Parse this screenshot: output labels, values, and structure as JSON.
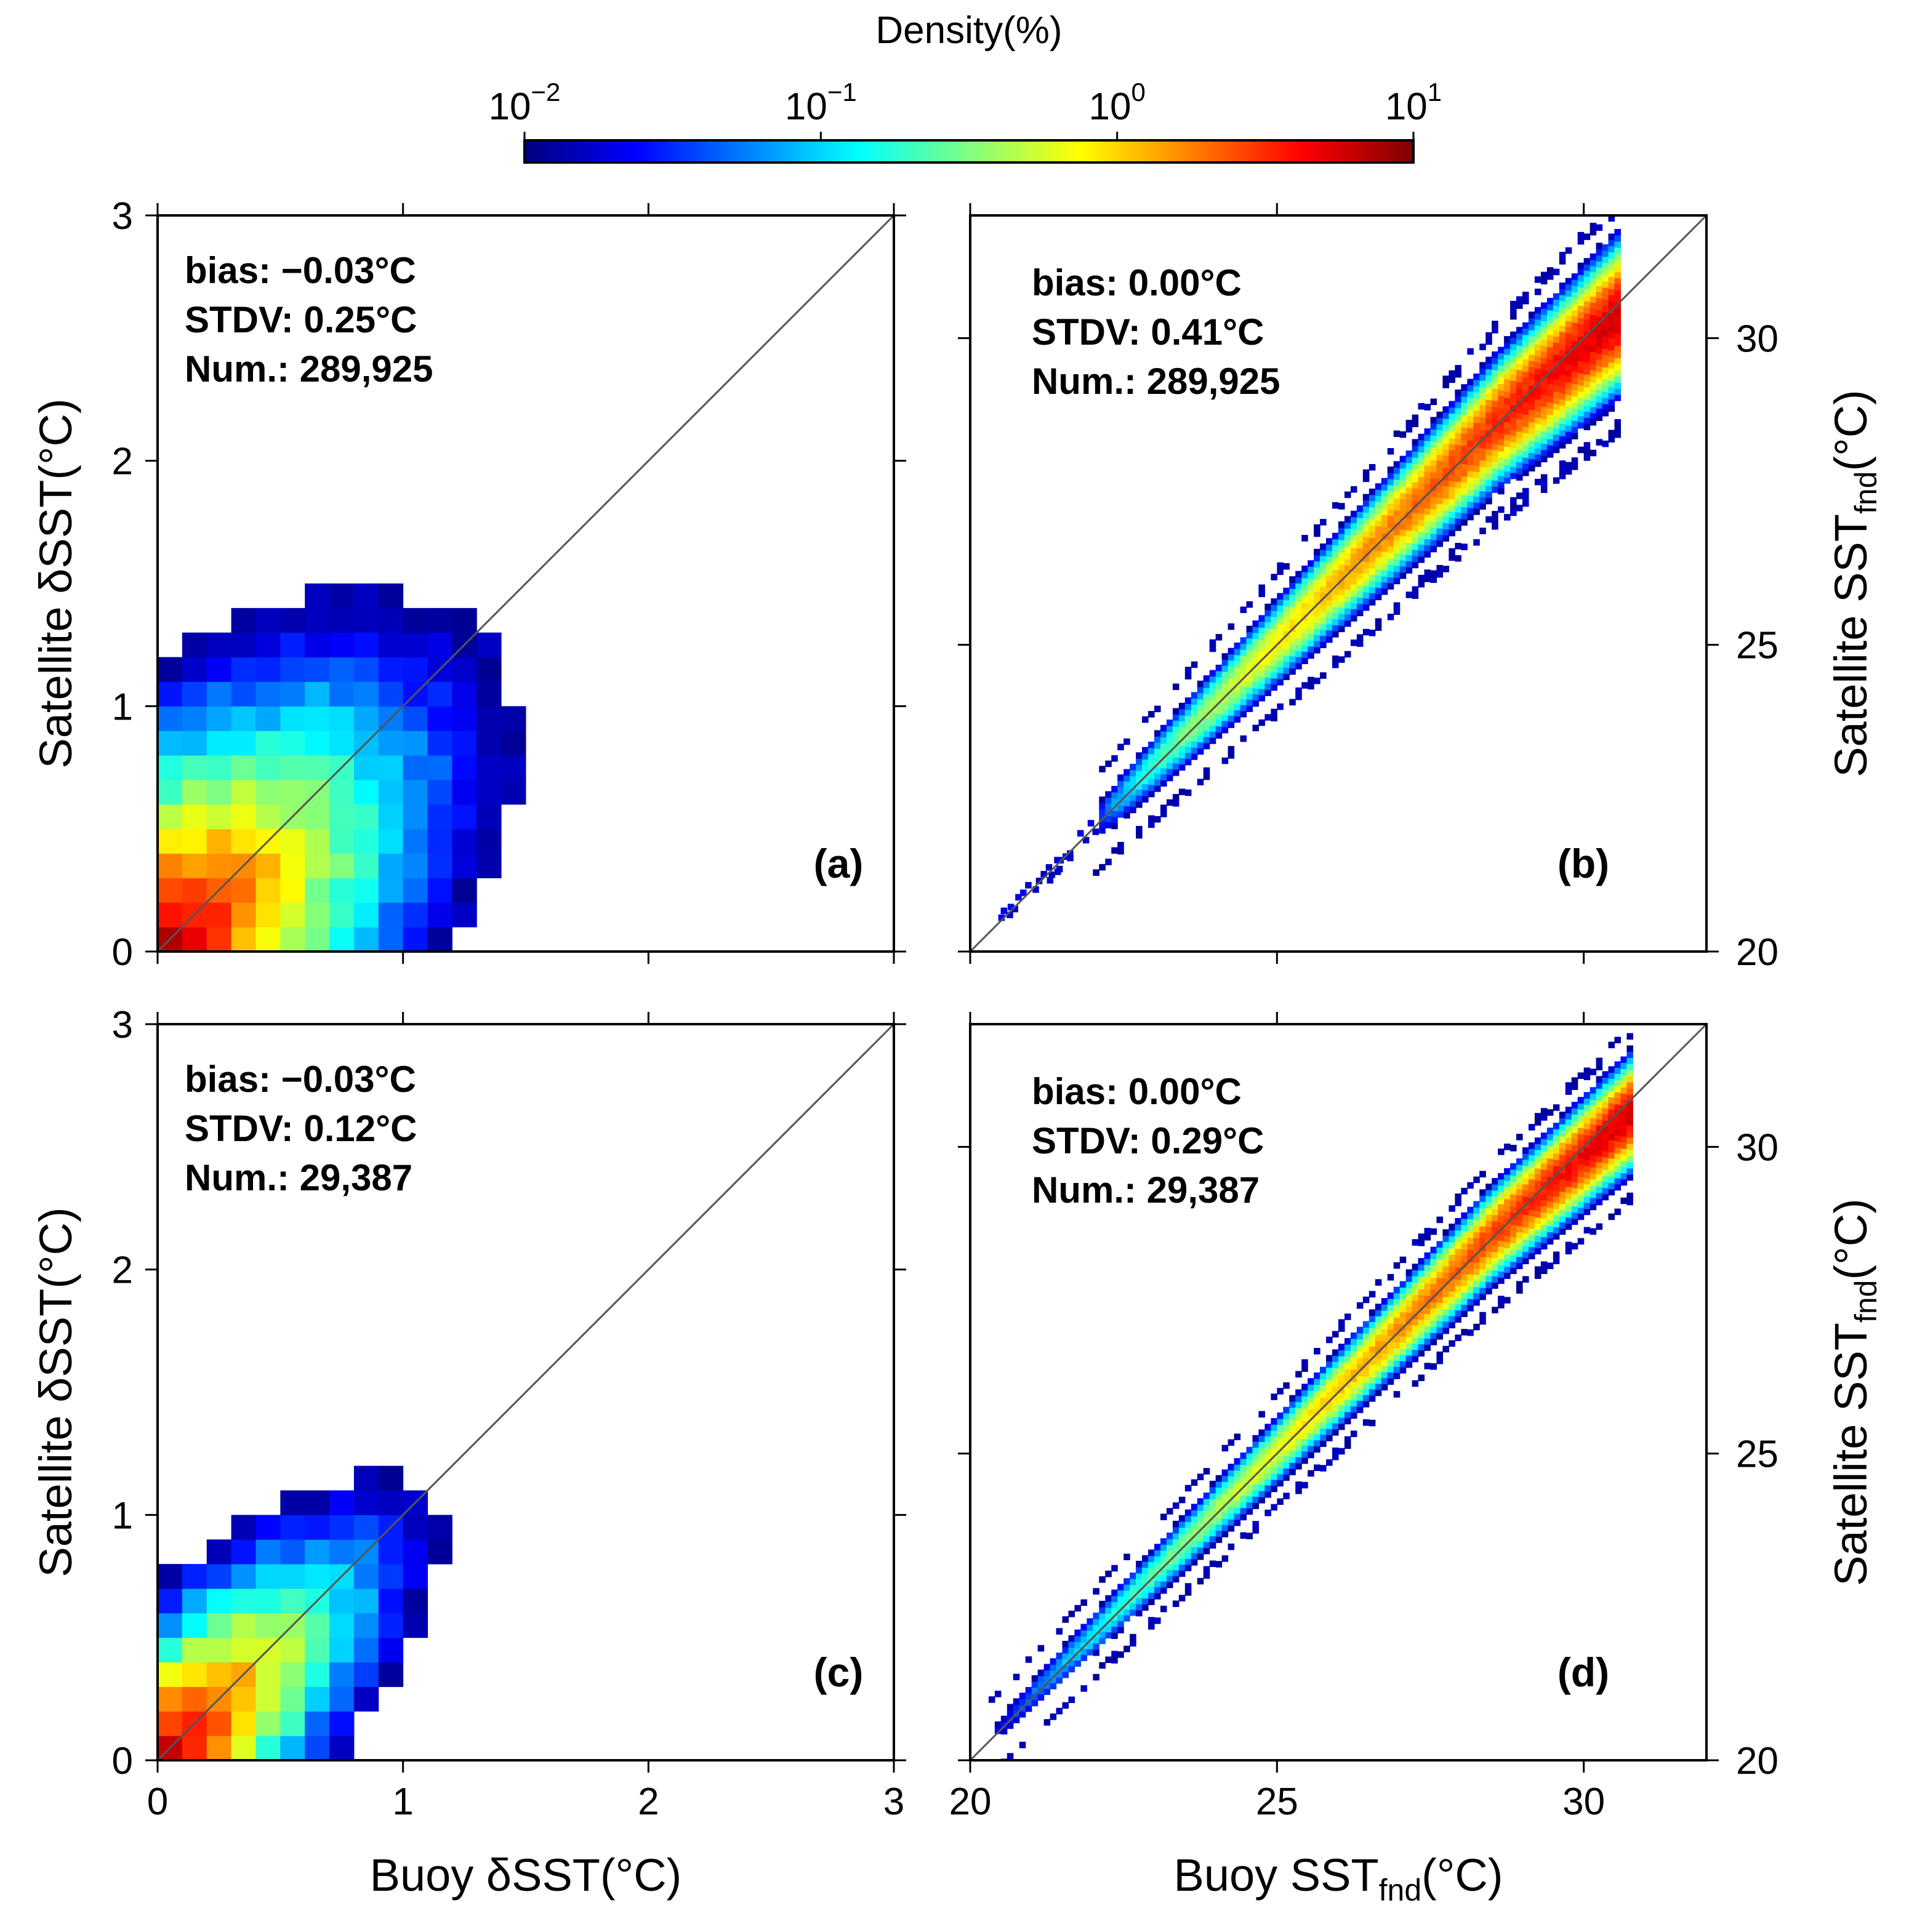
{
  "colorbar": {
    "title": "Density(%)",
    "scale": "log",
    "ticks": [
      {
        "base": "10",
        "exp": "−2",
        "value": 0.01
      },
      {
        "base": "10",
        "exp": "−1",
        "value": 0.1
      },
      {
        "base": "10",
        "exp": "0",
        "value": 1
      },
      {
        "base": "10",
        "exp": "1",
        "value": 10
      }
    ],
    "colors": [
      "#00007f",
      "#0000ff",
      "#0080ff",
      "#00ffff",
      "#80ff80",
      "#ffff00",
      "#ff8000",
      "#ff0000",
      "#7f0000"
    ]
  },
  "chart_data": [
    {
      "id": "a",
      "type": "heatmap",
      "panel_label": "(a)",
      "xlabel": "Buoy δSST(°C)",
      "ylabel": "Satellite δSST(°C)",
      "xlim": [
        0,
        3
      ],
      "ylim": [
        0,
        3
      ],
      "bin_width": 0.1,
      "xticks": [
        "0",
        "1",
        "2",
        "3"
      ],
      "yticks": [
        "0",
        "1",
        "2",
        "3"
      ],
      "stats": {
        "bias": "bias: −0.03°C",
        "stdv": "STDV: 0.25°C",
        "num": "Num.: 289,925"
      },
      "identity_line": true
    },
    {
      "id": "b",
      "type": "heatmap",
      "panel_label": "(b)",
      "xlabel": "Buoy SST",
      "xlabel_sub": "fnd",
      "xlabel_unit": "(°C)",
      "ylabel": "Satellite SST",
      "ylabel_sub": "fnd",
      "ylabel_unit": "(°C)",
      "xlim": [
        20,
        32
      ],
      "ylim": [
        20,
        32
      ],
      "bin_width": 0.1,
      "xticks": [
        "20",
        "25",
        "30"
      ],
      "yticks": [
        "20",
        "25",
        "30"
      ],
      "y_axis_side": "right",
      "stats": {
        "bias": "bias: 0.00°C",
        "stdv": "STDV: 0.41°C",
        "num": "Num.: 289,925"
      },
      "identity_line": true
    },
    {
      "id": "c",
      "type": "heatmap",
      "panel_label": "(c)",
      "xlabel": "Buoy δSST(°C)",
      "ylabel": "Satellite δSST(°C)",
      "xlim": [
        0,
        3
      ],
      "ylim": [
        0,
        3
      ],
      "bin_width": 0.1,
      "xticks": [
        "0",
        "1",
        "2",
        "3"
      ],
      "yticks": [
        "0",
        "1",
        "2",
        "3"
      ],
      "stats": {
        "bias": "bias: −0.03°C",
        "stdv": "STDV: 0.12°C",
        "num": "Num.: 29,387"
      },
      "identity_line": true
    },
    {
      "id": "d",
      "type": "heatmap",
      "panel_label": "(d)",
      "xlabel": "Buoy SST",
      "xlabel_sub": "fnd",
      "xlabel_unit": "(°C)",
      "ylabel": "Satellite SST",
      "ylabel_sub": "fnd",
      "ylabel_unit": "(°C)",
      "xlim": [
        20,
        32
      ],
      "ylim": [
        20,
        32
      ],
      "bin_width": 0.1,
      "xticks": [
        "20",
        "25",
        "30"
      ],
      "yticks": [
        "20",
        "25",
        "30"
      ],
      "y_axis_side": "right",
      "stats": {
        "bias": "bias: 0.00°C",
        "stdv": "STDV: 0.29°C",
        "num": "Num.: 29,387"
      },
      "identity_line": true
    }
  ]
}
